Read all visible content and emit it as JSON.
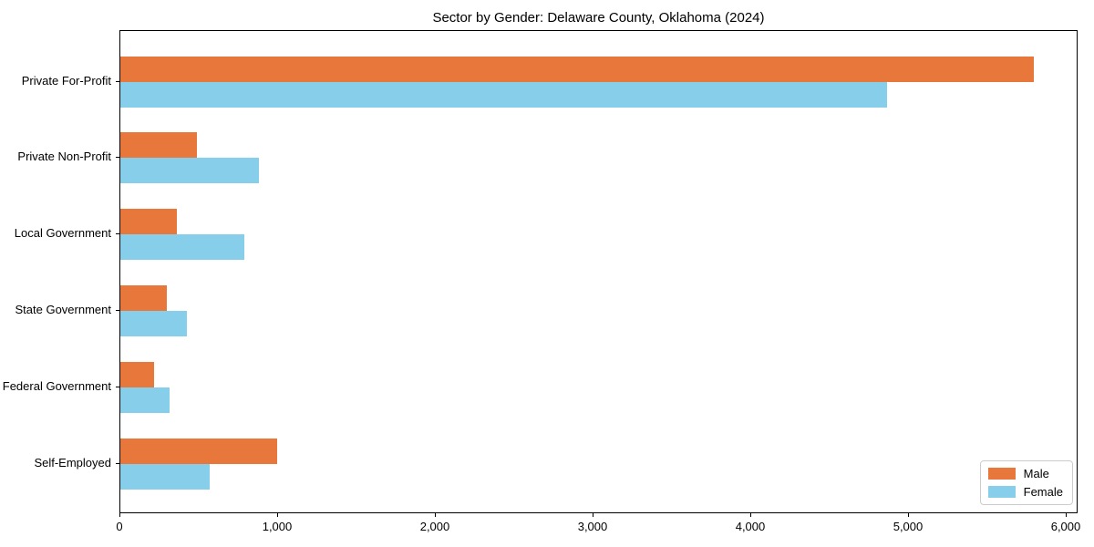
{
  "chart_data": {
    "type": "bar",
    "orientation": "horizontal",
    "title": "Sector by Gender: Delaware County, Oklahoma (2024)",
    "categories": [
      "Private For-Profit",
      "Private Non-Profit",
      "Local Government",
      "State Government",
      "Federal Government",
      "Self-Employed"
    ],
    "series": [
      {
        "name": "Male",
        "color": "#e8773c",
        "values": [
          5790,
          485,
          360,
          295,
          215,
          995
        ]
      },
      {
        "name": "Female",
        "color": "#87ceeb",
        "values": [
          4860,
          880,
          785,
          420,
          310,
          565
        ]
      }
    ],
    "xlabel": "",
    "ylabel": "",
    "xlim": [
      0,
      6075
    ],
    "xticks": [
      0,
      1000,
      2000,
      3000,
      4000,
      5000,
      6000
    ],
    "xtick_labels": [
      "0",
      "1,000",
      "2,000",
      "3,000",
      "4,000",
      "5,000",
      "6,000"
    ],
    "grid": false,
    "legend_position": "lower-right",
    "legend_items": [
      "Male",
      "Female"
    ]
  }
}
